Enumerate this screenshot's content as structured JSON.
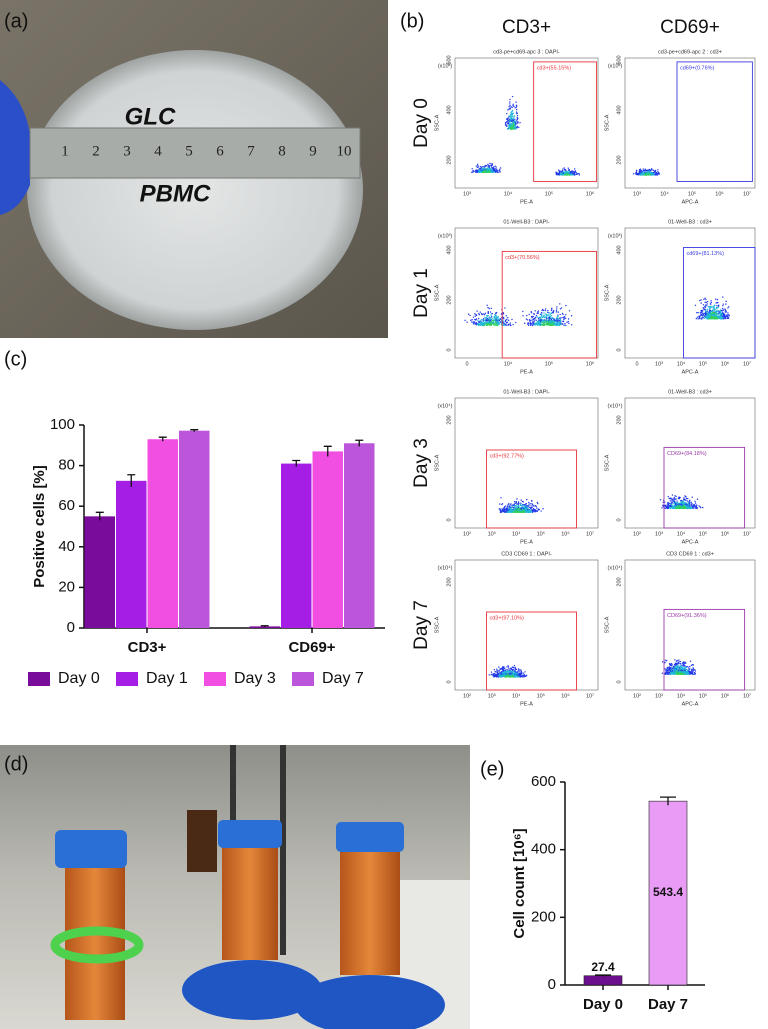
{
  "panel_labels": [
    "(a)",
    "(b)",
    "(c)",
    "(d)",
    "(e)"
  ],
  "photo_a": {
    "writing": [
      "GLC",
      "PBMC"
    ],
    "ruler": [
      "1",
      "2",
      "3",
      "4",
      "5",
      "6",
      "7",
      "8",
      "9",
      "10"
    ]
  },
  "flow": {
    "columns": [
      "CD3+",
      "CD69+"
    ],
    "rows": [
      "Day 0",
      "Day 1",
      "Day 3",
      "Day 7"
    ],
    "plots": [
      [
        {
          "title": "cd3-pe+cd69-apc 3 : DAPI-",
          "gate": "cd3+(55.15%)",
          "gate_color": "#e8343c",
          "xlabel": "PE-A",
          "ylabel": "SSC-A",
          "yscale": "(x10³)",
          "yticks": [
            "200",
            "400",
            "600"
          ],
          "xticks": [
            "10³",
            "10⁴",
            "10⁵",
            "10⁶"
          ]
        },
        {
          "title": "cd3-pe+cd69-apc 2 : cd3+",
          "gate": "cd69+(0.76%)",
          "gate_color": "#3a3ae0",
          "xlabel": "APC-A",
          "ylabel": "SSC-A",
          "yscale": "(x10³)",
          "yticks": [
            "200",
            "400",
            "600"
          ],
          "xticks": [
            "10³",
            "10⁴",
            "10⁵",
            "10⁶",
            "10⁷"
          ]
        }
      ],
      [
        {
          "title": "01-Well-B3 : DAPI-",
          "gate": "cd3+(70.56%)",
          "gate_color": "#e8343c",
          "xlabel": "PE-A",
          "ylabel": "SSC-A",
          "yscale": "(x10³)",
          "yticks": [
            "0",
            "200",
            "400"
          ],
          "xticks": [
            "0",
            "10⁴",
            "10⁵",
            "10⁶"
          ]
        },
        {
          "title": "01-Well-B3 : cd3+",
          "gate": "cd69+(81.13%)",
          "gate_color": "#3a3ae0",
          "xlabel": "APC-A",
          "ylabel": "SSC-A",
          "yscale": "(x10³)",
          "yticks": [
            "0",
            "200",
            "400"
          ],
          "xticks": [
            "0",
            "10³",
            "10⁴",
            "10⁵",
            "10⁶",
            "10⁷"
          ]
        }
      ],
      [
        {
          "title": "01-Well-B3 : DAPI-",
          "gate": "cd3+(92.77%)",
          "gate_color": "#e8343c",
          "xlabel": "PE-A",
          "ylabel": "SSC-A",
          "yscale": "(x10⁴)",
          "yticks": [
            "0",
            "200"
          ],
          "xticks": [
            "10²",
            "10³",
            "10⁴",
            "10⁵",
            "10⁶",
            "10⁷"
          ]
        },
        {
          "title": "01-Well-B3 : cd3+",
          "gate": "CD69+(84.18%)",
          "gate_color": "#9a3aa8",
          "xlabel": "APC-A",
          "ylabel": "SSC-A",
          "yscale": "(x10⁴)",
          "yticks": [
            "0",
            "200"
          ],
          "xticks": [
            "10²",
            "10³",
            "10⁴",
            "10⁵",
            "10⁶",
            "10⁷"
          ]
        }
      ],
      [
        {
          "title": "CD3 CD69 1 : DAPI-",
          "gate": "cd3+(97.10%)",
          "gate_color": "#e8343c",
          "xlabel": "PE-A",
          "ylabel": "SSC-A",
          "yscale": "(x10⁴)",
          "yticks": [
            "0",
            "200"
          ],
          "xticks": [
            "10²",
            "10³",
            "10⁴",
            "10⁵",
            "10⁶",
            "10⁷"
          ]
        },
        {
          "title": "CD3 CD69 1 : cd3+",
          "gate": "CD69+(91.36%)",
          "gate_color": "#9a3aa8",
          "xlabel": "APC-A",
          "ylabel": "SSC-A",
          "yscale": "(x10⁴)",
          "yticks": [
            "0",
            "200"
          ],
          "xticks": [
            "10²",
            "10³",
            "10⁴",
            "10⁵",
            "10⁶",
            "10⁷"
          ]
        }
      ]
    ]
  },
  "chart_data": [
    {
      "type": "bar",
      "ylabel": "Positive cells [%]",
      "categories": [
        "CD3+",
        "CD69+"
      ],
      "series": [
        {
          "name": "Day 0",
          "color": "#7a0c9c",
          "values": [
            55,
            0.8
          ],
          "errors": [
            2,
            0.3
          ]
        },
        {
          "name": "Day 1",
          "color": "#a51ee6",
          "values": [
            72.5,
            81
          ],
          "errors": [
            3,
            1.5
          ]
        },
        {
          "name": "Day 3",
          "color": "#f04fe2",
          "values": [
            93,
            87
          ],
          "errors": [
            1,
            2.5
          ]
        },
        {
          "name": "Day 7",
          "color": "#bb56da",
          "values": [
            97.2,
            91
          ],
          "errors": [
            0.5,
            1.5
          ]
        }
      ],
      "ylim": [
        0,
        100
      ],
      "yticks": [
        0,
        20,
        40,
        60,
        80,
        100
      ],
      "legend": "bottom"
    },
    {
      "type": "bar",
      "ylabel": "Cell count [10⁶]",
      "categories": [
        "Day 0",
        "Day 7"
      ],
      "values": [
        27.4,
        543.4
      ],
      "errors": [
        2,
        12
      ],
      "colors": [
        "#6c0f8e",
        "#e89cf6"
      ],
      "ylim": [
        0,
        600
      ],
      "yticks": [
        0,
        200,
        400,
        600
      ]
    }
  ]
}
